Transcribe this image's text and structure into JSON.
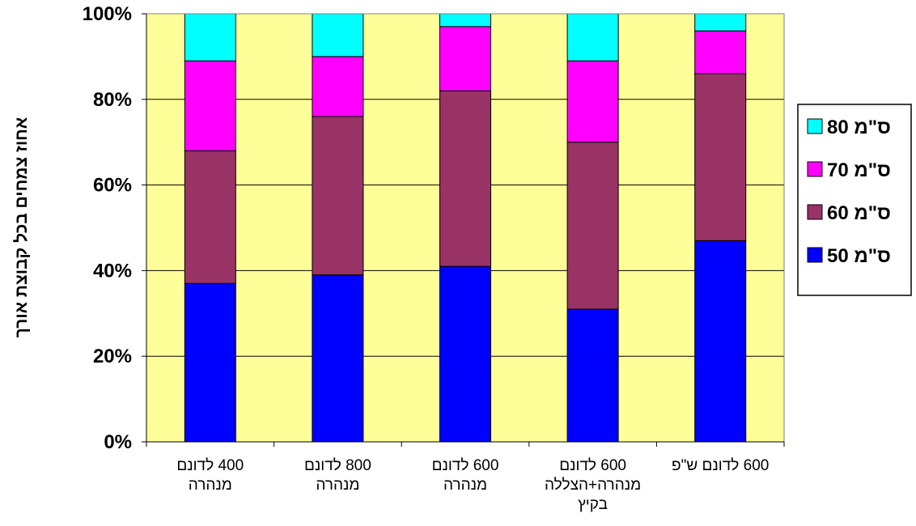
{
  "chart_data": {
    "type": "bar",
    "stacked": true,
    "percent_stacked": true,
    "categories": [
      [
        "400 לדונם",
        "מנהרה"
      ],
      [
        "800 לדונם",
        "מנהרה"
      ],
      [
        "600 לדונם",
        "מנהרה"
      ],
      [
        "600 לדונם",
        "מנהרה+הצללה",
        "בקיץ"
      ],
      [
        "600 לדונם ש\"פ"
      ]
    ],
    "series": [
      {
        "name": "50 ס\"מ",
        "color": "#0000FF",
        "values": [
          37,
          39,
          41,
          31,
          47
        ]
      },
      {
        "name": "60 ס\"מ",
        "color": "#993366",
        "values": [
          31,
          37,
          41,
          39,
          39
        ]
      },
      {
        "name": "70 ס\"מ",
        "color": "#FF00FF",
        "values": [
          21,
          14,
          15,
          19,
          10
        ]
      },
      {
        "name": "80 ס\"מ",
        "color": "#00FFFF",
        "values": [
          11,
          10,
          3,
          11,
          4
        ]
      }
    ],
    "ylabel": "אחוז צמחים בכל קבוצת אורך",
    "xlabel": "",
    "ylim": [
      0,
      100
    ],
    "yticks": [
      "0%",
      "20%",
      "40%",
      "60%",
      "80%",
      "100%"
    ],
    "grid": true,
    "plot_background": "#FFFF99",
    "legend_position": "right"
  }
}
